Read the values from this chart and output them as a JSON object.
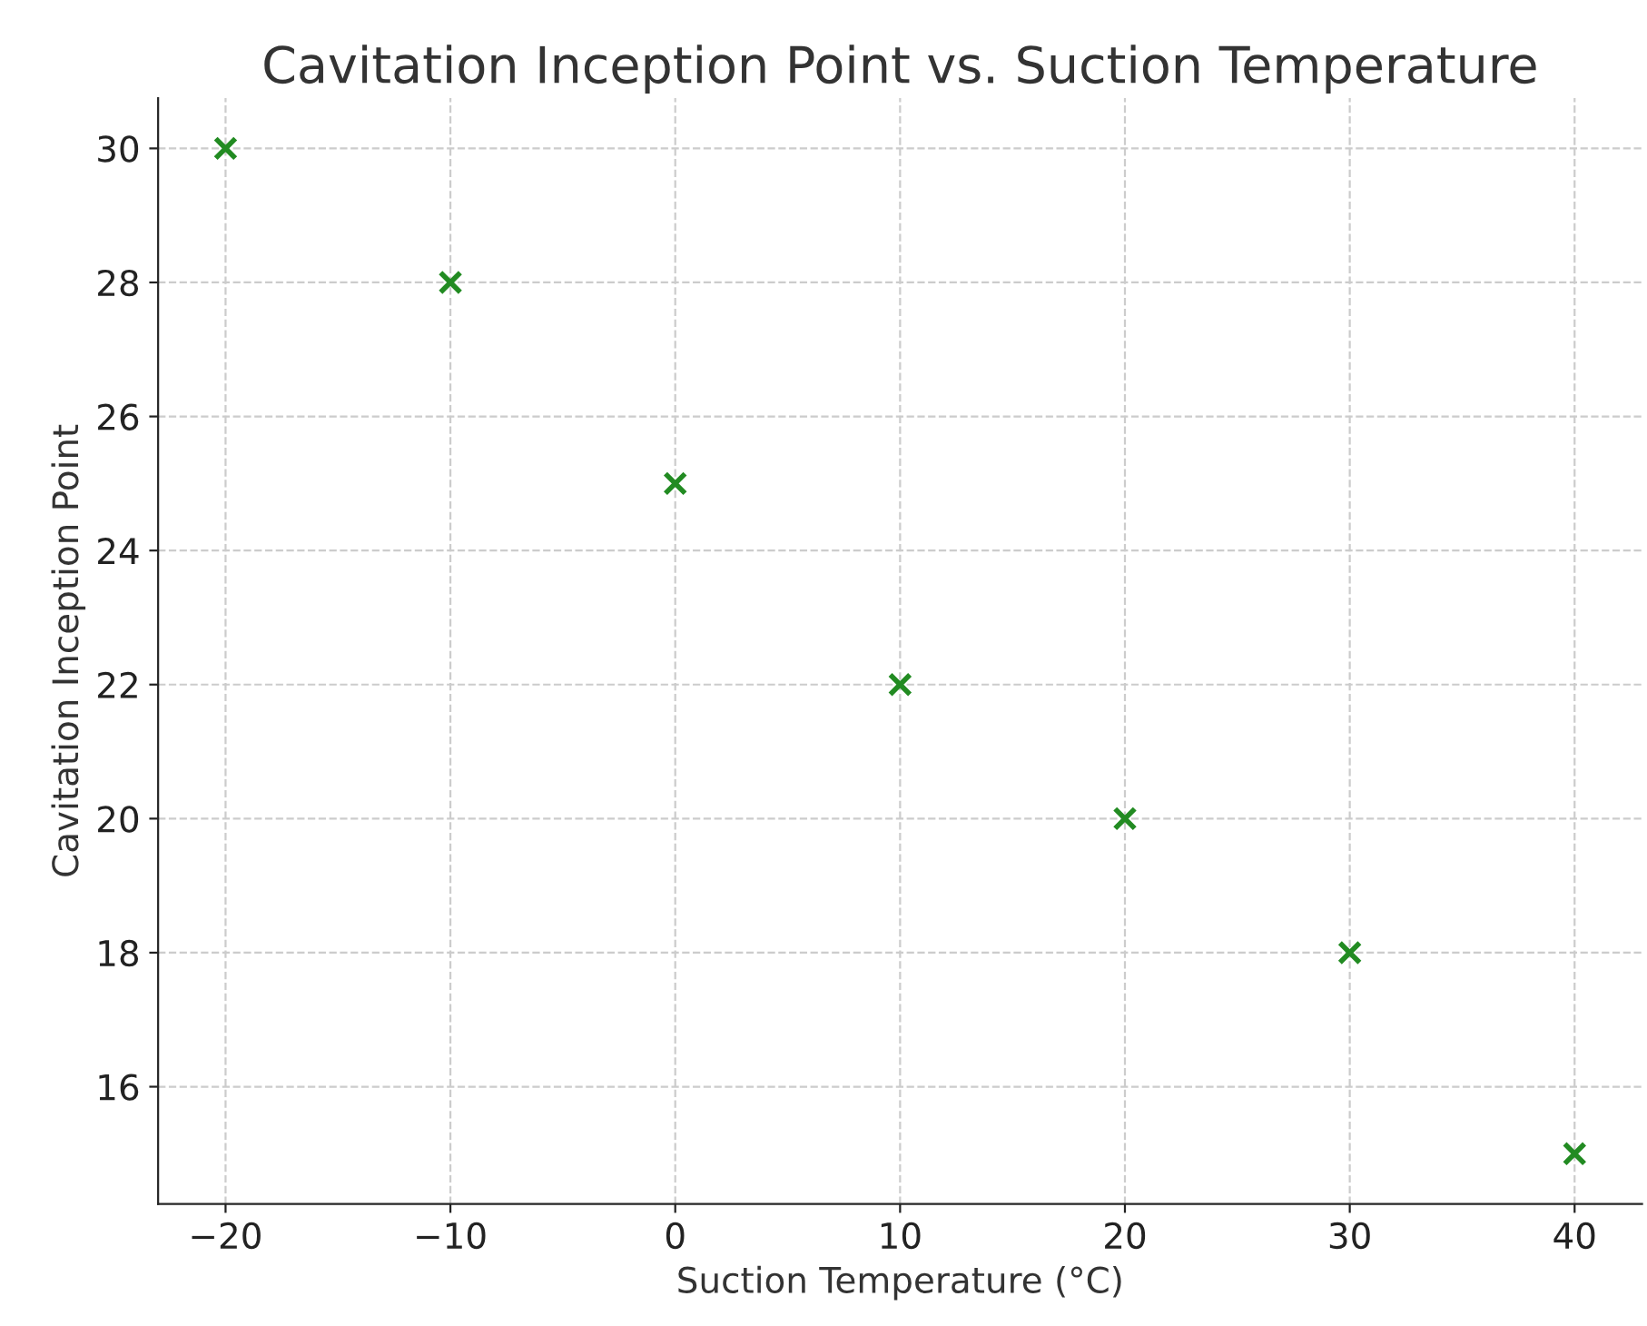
{
  "chart_data": {
    "type": "scatter",
    "title": "Cavitation Inception Point vs. Suction Temperature",
    "xlabel": "Suction Temperature (°C)",
    "ylabel": "Cavitation Inception Point",
    "x": [
      -20,
      -10,
      0,
      10,
      20,
      30,
      40
    ],
    "series": [
      {
        "color": "#228b22",
        "values": [
          30,
          28,
          25,
          22,
          20,
          18,
          15
        ]
      }
    ],
    "xlim": [
      -23,
      43
    ],
    "xticks": [
      {
        "value": -20,
        "label": "−20"
      },
      {
        "value": -10,
        "label": "−10"
      },
      0,
      10,
      20,
      30,
      40
    ],
    "ylim": [
      14.25,
      30.75
    ],
    "yticks": [
      16,
      18,
      20,
      22,
      24,
      26,
      28,
      30
    ],
    "grid": true,
    "marker": "cross"
  }
}
